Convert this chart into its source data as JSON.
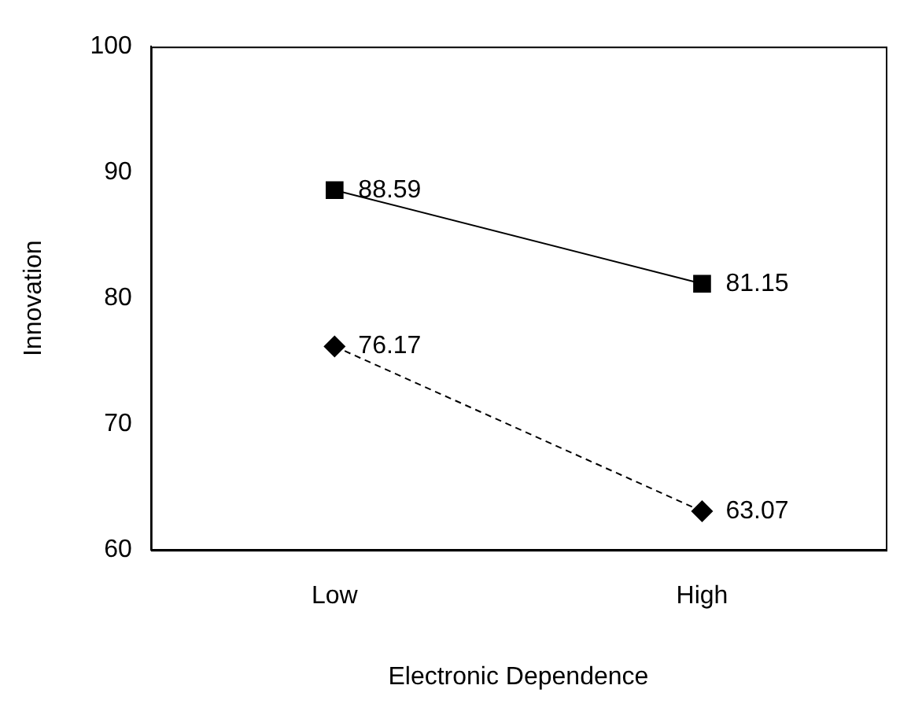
{
  "chart_data": {
    "type": "line",
    "xlabel": "Electronic Dependence",
    "ylabel": "Innovation",
    "categories": [
      "Low",
      "High"
    ],
    "series": [
      {
        "color": "#000000",
        "values": [
          88.59,
          81.15
        ],
        "marker": "square",
        "line_style": "solid"
      },
      {
        "color": "#000000",
        "values": [
          76.17,
          63.07
        ],
        "marker": "diamond",
        "line_style": "dashed"
      }
    ],
    "ylim": [
      60,
      100
    ],
    "yticks": [
      60,
      70,
      80,
      90,
      100
    ],
    "grid": false,
    "legend": false,
    "data_labels": true
  }
}
